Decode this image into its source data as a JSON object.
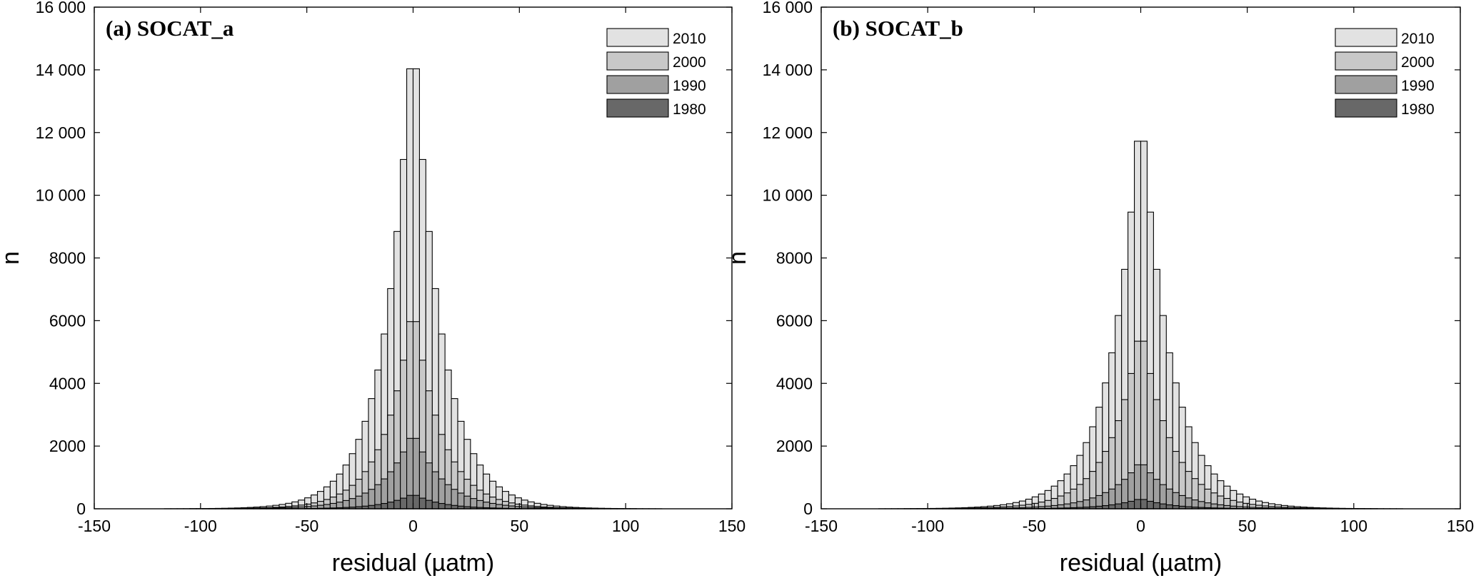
{
  "chart_data": [
    {
      "type": "bar",
      "title": "(a) SOCAT_a",
      "xlabel": "residual (µatm)",
      "ylabel": "n",
      "xlim": [
        -150,
        150
      ],
      "ylim": [
        0,
        16000
      ],
      "xticks": [
        -150,
        -100,
        -50,
        0,
        50,
        100,
        150
      ],
      "yticks": [
        0,
        2000,
        4000,
        6000,
        8000,
        10000,
        12000,
        14000,
        16000
      ],
      "xtick_labels": [
        "-150",
        "-100",
        "-50",
        "0",
        "50",
        "100",
        "150"
      ],
      "ytick_labels": [
        "0",
        "2000",
        "4000",
        "6000",
        "8000",
        "10 000",
        "12 000",
        "14 000",
        "16 000"
      ],
      "legend": [
        "2010",
        "2000",
        "1990",
        "1980"
      ],
      "legend_position": "top-right",
      "bin_width": 3,
      "series": [
        {
          "name": "2010",
          "color": "#e2e2e2",
          "peak": 15750,
          "shape": "laplace",
          "scale": 13
        },
        {
          "name": "2000",
          "color": "#c8c8c8",
          "peak": 6700,
          "shape": "laplace",
          "scale": 13
        },
        {
          "name": "1990",
          "color": "#a0a0a0",
          "peak": 2500,
          "shape": "laplace",
          "scale": 14
        },
        {
          "name": "1980",
          "color": "#686868",
          "peak": 480,
          "shape": "laplace",
          "scale": 13
        }
      ]
    },
    {
      "type": "bar",
      "title": "(b) SOCAT_b",
      "xlabel": "residual (µatm)",
      "ylabel": "n",
      "xlim": [
        -150,
        150
      ],
      "ylim": [
        0,
        16000
      ],
      "xticks": [
        -150,
        -100,
        -50,
        0,
        50,
        100,
        150
      ],
      "yticks": [
        0,
        2000,
        4000,
        6000,
        8000,
        10000,
        12000,
        14000,
        16000
      ],
      "xtick_labels": [
        "-150",
        "-100",
        "-50",
        "0",
        "50",
        "100",
        "150"
      ],
      "ytick_labels": [
        "0",
        "2000",
        "4000",
        "6000",
        "8000",
        "10 000",
        "12 000",
        "14 000",
        "16 000"
      ],
      "legend": [
        "2010",
        "2000",
        "1990",
        "1980"
      ],
      "legend_position": "top-right",
      "bin_width": 3,
      "series": [
        {
          "name": "2010",
          "color": "#e2e2e2",
          "peak": 13050,
          "shape": "laplace",
          "scale": 14
        },
        {
          "name": "2000",
          "color": "#c8c8c8",
          "peak": 5950,
          "shape": "laplace",
          "scale": 14
        },
        {
          "name": "1990",
          "color": "#a0a0a0",
          "peak": 1550,
          "shape": "laplace",
          "scale": 15
        },
        {
          "name": "1980",
          "color": "#686868",
          "peak": 330,
          "shape": "laplace",
          "scale": 14
        }
      ]
    }
  ]
}
